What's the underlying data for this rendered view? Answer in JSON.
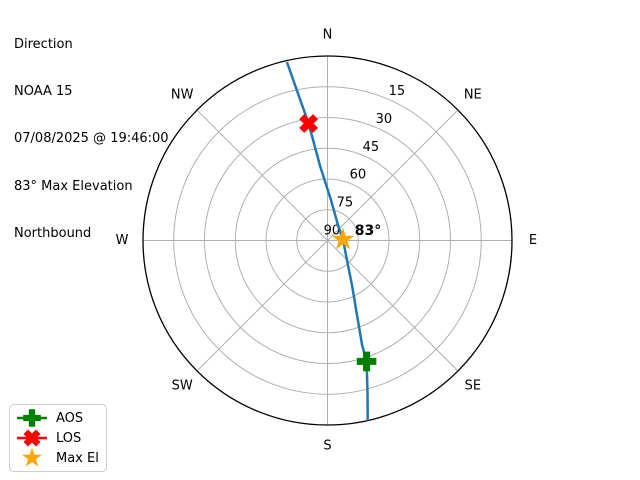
{
  "header": {
    "lines": [
      "Direction",
      "NOAA 15",
      "07/08/2025 @ 19:46:00",
      "83° Max Elevation",
      "Northbound"
    ]
  },
  "chart_data": {
    "type": "line",
    "projection": "polar",
    "description": "Satellite pass sky track: azimuth = compass angle, elevation = 90 at center, 0 at outer circle",
    "compass_labels": [
      "N",
      "NE",
      "E",
      "SE",
      "S",
      "SW",
      "W",
      "NW"
    ],
    "elevation_ring_labels": [
      15,
      30,
      45,
      60,
      75,
      90
    ],
    "elevation_range": [
      0,
      90
    ],
    "ring_label_azimuth_deg": 25,
    "grid_color": "#b0b0b0",
    "outline_color": "#000000",
    "track": {
      "name": "NOAA 15 pass track",
      "color": "#1f77b4",
      "points_az_el": [
        [
          167.4,
          0.0
        ],
        [
          165.2,
          13.6
        ],
        [
          162.1,
          28.0
        ],
        [
          161.7,
          36.3
        ],
        [
          158.4,
          50.9
        ],
        [
          151.2,
          65.2
        ],
        [
          135.0,
          76.6
        ],
        [
          86.3,
          82.4
        ],
        [
          34.1,
          80.9
        ],
        [
          4.9,
          70.2
        ],
        [
          354.3,
          53.5
        ],
        [
          350.8,
          32.2
        ],
        [
          347.2,
          0.7
        ]
      ]
    },
    "markers": [
      {
        "name": "aos",
        "label": "AOS",
        "shape": "plus",
        "color": "#008000",
        "az": 162.1,
        "el": 28.0
      },
      {
        "name": "los",
        "label": "LOS",
        "shape": "x",
        "color": "#ff0000",
        "az": 350.8,
        "el": 32.2
      },
      {
        "name": "max_el",
        "label": "Max El",
        "shape": "star",
        "color": "#ffa500",
        "az": 86.3,
        "el": 82.4
      }
    ],
    "annotation": {
      "text": "83°"
    }
  },
  "legend": {
    "items": [
      {
        "label": "AOS",
        "shape": "plus",
        "color": "#008000",
        "line": true
      },
      {
        "label": "LOS",
        "shape": "x",
        "color": "#ff0000",
        "line": true
      },
      {
        "label": "Max El",
        "shape": "star",
        "color": "#ffa500",
        "line": false
      }
    ]
  }
}
